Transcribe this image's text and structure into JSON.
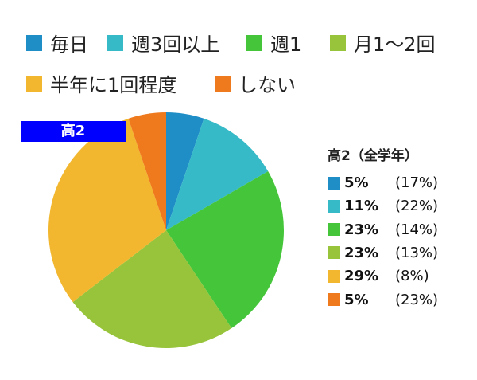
{
  "chart_data": {
    "type": "pie",
    "categories": [
      "毎日",
      "週3回以上",
      "週1",
      "月1〜2回",
      "半年に1回程度",
      "しない"
    ],
    "values": [
      5,
      11,
      23,
      23,
      29,
      5
    ],
    "value_labels": [
      "5%",
      "11%",
      "23%",
      "23%",
      "29%",
      "5%"
    ],
    "comparison_labels": [
      "(17%)",
      "(22%)",
      "(14%)",
      "(13%)",
      "(8%)",
      "(23%)"
    ],
    "colors": [
      "#1f8ec6",
      "#36bac7",
      "#45c63a",
      "#97c43a",
      "#f2b72e",
      "#ef7a1e"
    ],
    "badge": "高2",
    "legend_title": "高2（全学年）",
    "legend": "top"
  }
}
